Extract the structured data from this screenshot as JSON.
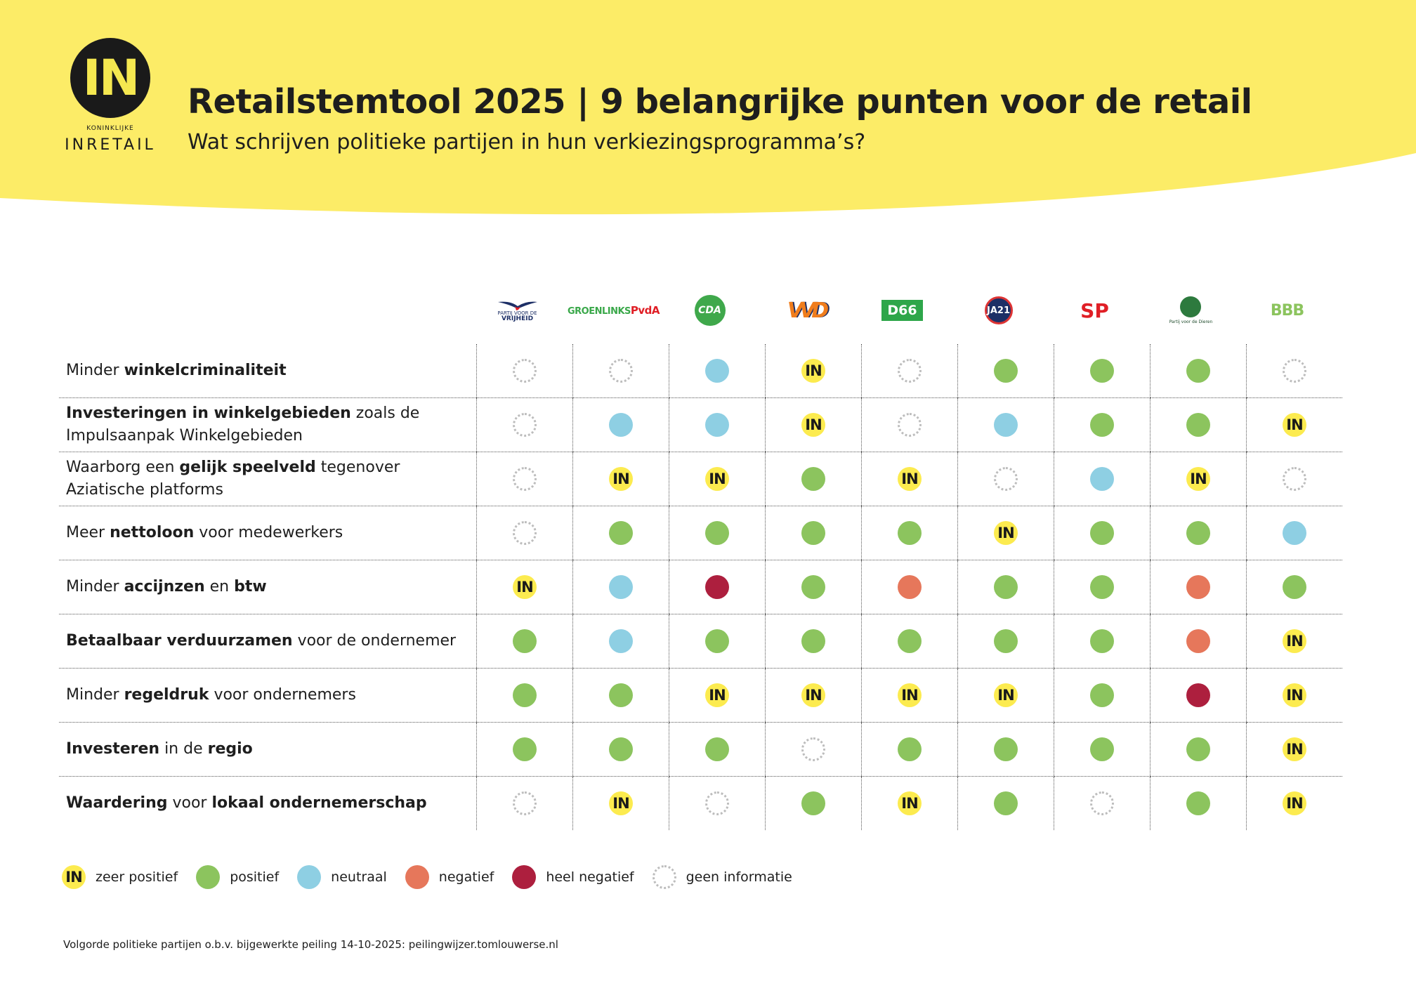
{
  "colors": {
    "banner_yellow": "#fcec67",
    "zeer_positief": "#fceb4f",
    "positief": "#8cc45e",
    "neutraal": "#8ecfe3",
    "negatief": "#e6775b",
    "heel_negatief": "#ad1f3e"
  },
  "logo": {
    "mark": "IN",
    "small": "KONINKLIJKE",
    "name": "INRETAIL"
  },
  "header": {
    "title": "Retailstemtool 2025 | 9 belangrijke punten voor de retail",
    "subtitle": "Wat schrijven politieke partijen in hun verkiezingsprogramma’s?"
  },
  "parties": [
    {
      "id": "pvv",
      "text_top": "PARTIJ VOOR DE",
      "text_bottom": "VRIJHEID"
    },
    {
      "id": "glpvda",
      "text_top": "GROEN",
      "text_mid": "LINKS",
      "text_bottom": "PvdA"
    },
    {
      "id": "cda",
      "text": "CDA"
    },
    {
      "id": "vvd",
      "text": "VVD"
    },
    {
      "id": "d66",
      "text": "D66"
    },
    {
      "id": "ja21",
      "text": "JA21"
    },
    {
      "id": "sp",
      "text": "SP"
    },
    {
      "id": "pvdd",
      "text": "Partij voor de Dieren"
    },
    {
      "id": "bbb",
      "text": "BBB"
    }
  ],
  "in_mark": "IN",
  "rows": [
    {
      "l1": "Minder ",
      "l1b": "winkelcriminaliteit",
      "l2": "",
      "l2b": "",
      "l3": "",
      "l4": "",
      "l4b": "",
      "v": [
        "gi",
        "gi",
        "n",
        "zp",
        "gi",
        "p",
        "p",
        "p",
        "gi"
      ]
    },
    {
      "l1": "",
      "l1b": "Investeringen in winkelgebieden",
      "l2": " zoals de",
      "l2b": "",
      "l3": "",
      "l4": "Impulsaanpak Winkelgebieden",
      "l4b": "",
      "v": [
        "gi",
        "n",
        "n",
        "zp",
        "gi",
        "n",
        "p",
        "p",
        "zp"
      ]
    },
    {
      "l1": "Waarborg een ",
      "l1b": "gelijk speelveld",
      "l2": " tegenover",
      "l2b": "",
      "l3": "",
      "l4": "Aziatische platforms",
      "l4b": "",
      "v": [
        "gi",
        "zp",
        "zp",
        "p",
        "zp",
        "gi",
        "n",
        "zp",
        "gi"
      ]
    },
    {
      "l1": "Meer ",
      "l1b": "nettoloon",
      "l2": " voor medewerkers",
      "l2b": "",
      "l3": "",
      "l4": "",
      "l4b": "",
      "v": [
        "gi",
        "p",
        "p",
        "p",
        "p",
        "zp",
        "p",
        "p",
        "n"
      ]
    },
    {
      "l1": "Minder ",
      "l1b": "accijnzen",
      "l2": " en ",
      "l2b": "btw",
      "l3": "",
      "l4": "",
      "l4b": "",
      "v": [
        "zp",
        "n",
        "hn",
        "p",
        "neg",
        "p",
        "p",
        "neg",
        "p"
      ]
    },
    {
      "l1": "",
      "l1b": "Betaalbaar verduurzamen",
      "l2": " voor de ondernemer",
      "l2b": "",
      "l3": "",
      "l4": "",
      "l4b": "",
      "v": [
        "p",
        "n",
        "p",
        "p",
        "p",
        "p",
        "p",
        "neg",
        "zp"
      ]
    },
    {
      "l1": "Minder ",
      "l1b": "regeldruk",
      "l2": " voor ondernemers",
      "l2b": "",
      "l3": "",
      "l4": "",
      "l4b": "",
      "v": [
        "p",
        "p",
        "zp",
        "zp",
        "zp",
        "zp",
        "p",
        "hn",
        "zp"
      ]
    },
    {
      "l1": "",
      "l1b": "Investeren",
      "l2": " in de ",
      "l2b": "regio",
      "l3": "",
      "l4": "",
      "l4b": "",
      "v": [
        "p",
        "p",
        "p",
        "gi",
        "p",
        "p",
        "p",
        "p",
        "zp"
      ]
    },
    {
      "l1": "",
      "l1b": "Waardering",
      "l2": " voor ",
      "l2b": "lokaal ondernemerschap",
      "l3": "",
      "l4": "",
      "l4b": "",
      "v": [
        "gi",
        "zp",
        "gi",
        "p",
        "zp",
        "p",
        "gi",
        "p",
        "zp"
      ]
    }
  ],
  "legend": {
    "zeer_positief": "zeer positief",
    "positief": "positief",
    "neutraal": "neutraal",
    "negatief": "negatief",
    "heel_negatief": "heel negatief",
    "geen_informatie": "geen informatie"
  },
  "footnote": "Volgorde politieke partijen o.b.v. bijgewerkte peiling 14-10-2025: peilingwijzer.tomlouwerse.nl"
}
